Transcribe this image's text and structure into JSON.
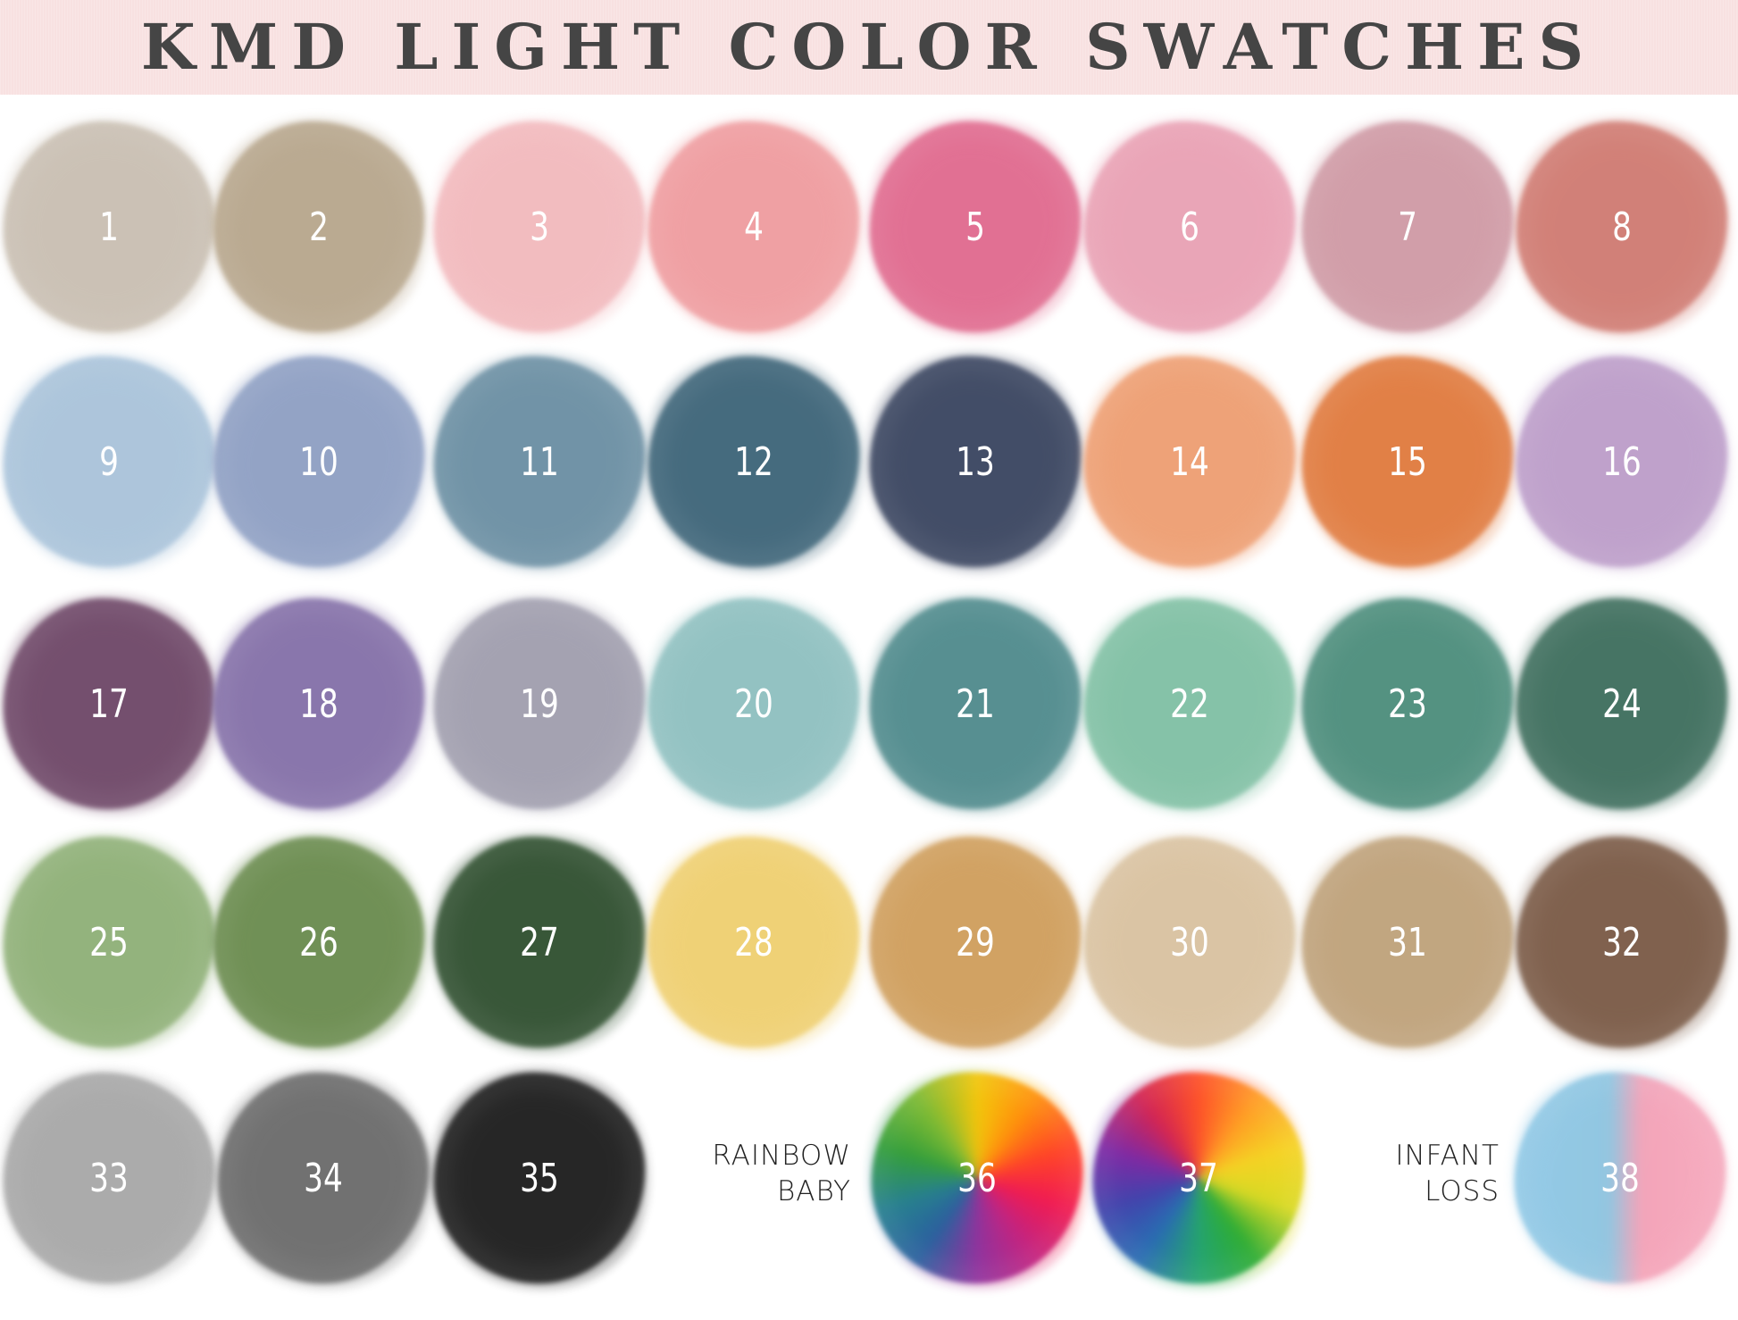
{
  "header": {
    "title": "KMD LIGHT COLOR SWATCHES",
    "background": "#f8e1e1"
  },
  "labels": {
    "rainbow": [
      "RAINBOW",
      "BABY"
    ],
    "infant": [
      "INFANT",
      "LOSS"
    ]
  },
  "swatches": [
    {
      "number": "1",
      "color": "#c9bfb2"
    },
    {
      "number": "2",
      "color": "#b7a68c"
    },
    {
      "number": "3",
      "color": "#f2b9bd"
    },
    {
      "number": "4",
      "color": "#ef9c9f"
    },
    {
      "number": "5",
      "color": "#e06a8e"
    },
    {
      "number": "6",
      "color": "#e9a1b4"
    },
    {
      "number": "7",
      "color": "#cf9aa5"
    },
    {
      "number": "8",
      "color": "#d07b72"
    },
    {
      "number": "9",
      "color": "#a9c3da"
    },
    {
      "number": "10",
      "color": "#8e9fc3"
    },
    {
      "number": "11",
      "color": "#6b8fa3"
    },
    {
      "number": "12",
      "color": "#3d6478"
    },
    {
      "number": "13",
      "color": "#3a4560"
    },
    {
      "number": "14",
      "color": "#ee9e72"
    },
    {
      "number": "15",
      "color": "#e07a3e"
    },
    {
      "number": "16",
      "color": "#bc9dc9"
    },
    {
      "number": "17",
      "color": "#6e4767"
    },
    {
      "number": "18",
      "color": "#8470a8"
    },
    {
      "number": "19",
      "color": "#a09eae"
    },
    {
      "number": "20",
      "color": "#8fc0c0"
    },
    {
      "number": "21",
      "color": "#4f8a8c"
    },
    {
      "number": "22",
      "color": "#80c0a4"
    },
    {
      "number": "23",
      "color": "#4c8d7c"
    },
    {
      "number": "24",
      "color": "#3e6e5d"
    },
    {
      "number": "25",
      "color": "#8fb077"
    },
    {
      "number": "26",
      "color": "#6a8b4e"
    },
    {
      "number": "27",
      "color": "#2f4f2f"
    },
    {
      "number": "28",
      "color": "#efcf70"
    },
    {
      "number": "29",
      "color": "#cf9e5c"
    },
    {
      "number": "30",
      "color": "#d9c2a0"
    },
    {
      "number": "31",
      "color": "#bfa27a"
    },
    {
      "number": "32",
      "color": "#7a5a46"
    },
    {
      "number": "33",
      "color": "#a7a7a7"
    },
    {
      "number": "34",
      "color": "#6b6b6b"
    },
    {
      "number": "35",
      "color": "#1c1c1c"
    },
    {
      "number": "36",
      "gradient": "rainbow-baby"
    },
    {
      "number": "37",
      "gradient": "rainbow"
    },
    {
      "number": "38",
      "gradient": "blue-pink"
    }
  ]
}
